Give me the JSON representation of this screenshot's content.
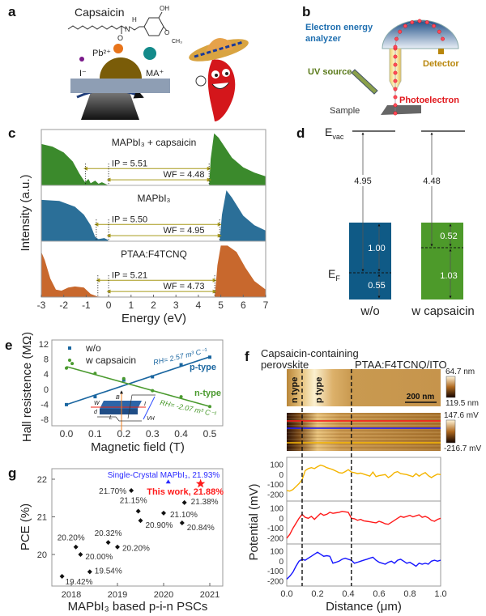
{
  "panel_labels": {
    "a": "a",
    "b": "b",
    "c": "c",
    "d": "d",
    "e": "e",
    "f": "f",
    "g": "g"
  },
  "panel_a": {
    "title": "Capsaicin",
    "molecule_labels": {
      "oh": "OH",
      "h": "H",
      "n": "N",
      "o": "O",
      "o2": "O",
      "ch3": "CH₃"
    },
    "pb": "Pb²⁺",
    "iodide": "I⁻",
    "ma": "MA⁺",
    "colors": {
      "pb": "#e8741a",
      "ma": "#138a8a",
      "iodide": "#7a1a8a",
      "dome": "#7a5c08",
      "substrate": "#8e9eb4"
    }
  },
  "panel_b": {
    "analyzer_line1": "Electron energy",
    "analyzer_line2": "analyzer",
    "detector": "Detector",
    "uv_source": "UV source",
    "photoelectron": "Photoelectron",
    "sample": "Sample",
    "colors": {
      "analyzer": "#1f6fb0",
      "detector": "#b8860b",
      "uv": "#5a7a1a",
      "photoelectron": "#e0161b",
      "sample": "#333333"
    }
  },
  "panel_d": {
    "evac": "E",
    "evac_sub": "vac",
    "ef": "E",
    "ef_sub": "F",
    "columns": [
      {
        "label": "w/o",
        "wf": "4.95",
        "upper": "1.00",
        "lower": "0.55",
        "color": "#0f5a86"
      },
      {
        "label": "w capsaicin",
        "wf": "4.48",
        "upper": "0.52",
        "lower": "1.03",
        "color": "#4d9a2a"
      }
    ]
  },
  "chart_data": [
    {
      "id": "c",
      "type": "area",
      "xlabel": "Energy (eV)",
      "ylabel": "Intensity (a.u.)",
      "xlim": [
        -3,
        7
      ],
      "xticks": [
        "-3",
        "-2",
        "-1",
        "0",
        "1",
        "2",
        "3",
        "4",
        "5",
        "6",
        "7"
      ],
      "series": [
        {
          "name": "MAPbI₃ + capsaicin",
          "color": "#3b8a2c",
          "ip": "IP = 5.51",
          "wf": "WF = 4.48",
          "vbm": -1.03,
          "cutoff": 4.48,
          "points": [
            [
              -3,
              0.78
            ],
            [
              -2.5,
              0.73
            ],
            [
              -2,
              0.62
            ],
            [
              -1.6,
              0.45
            ],
            [
              -1.3,
              0.22
            ],
            [
              -1.05,
              0.06
            ],
            [
              -0.9,
              0.12
            ],
            [
              -0.8,
              0.04
            ],
            [
              -0.6,
              0.09
            ],
            [
              -0.45,
              0.03
            ],
            [
              -0.3,
              0.06
            ],
            [
              -0.1,
              0.02
            ],
            [
              0,
              0
            ],
            [
              4.48,
              0
            ],
            [
              4.55,
              0.5
            ],
            [
              4.7,
              0.98
            ],
            [
              4.9,
              0.9
            ],
            [
              5.5,
              0.52
            ],
            [
              6,
              0.34
            ],
            [
              6.5,
              0.24
            ],
            [
              7,
              0.17
            ]
          ]
        },
        {
          "name": "MAPbI₃",
          "color": "#2b6f98",
          "ip": "IP = 5.50",
          "wf": "WF = 4.95",
          "vbm": -0.55,
          "cutoff": 4.95,
          "points": [
            [
              -3,
              0.78
            ],
            [
              -2.2,
              0.76
            ],
            [
              -1.5,
              0.65
            ],
            [
              -1.1,
              0.5
            ],
            [
              -0.8,
              0.3
            ],
            [
              -0.6,
              0.08
            ],
            [
              -0.45,
              0.04
            ],
            [
              -0.2,
              0.06
            ],
            [
              -0.05,
              0.03
            ],
            [
              0,
              0
            ],
            [
              4.95,
              0
            ],
            [
              5.05,
              0.5
            ],
            [
              5.25,
              0.96
            ],
            [
              5.5,
              0.82
            ],
            [
              6,
              0.48
            ],
            [
              6.5,
              0.3
            ],
            [
              7,
              0.2
            ]
          ]
        },
        {
          "name": "PTAA:F4TCNQ",
          "color": "#c8682d",
          "ip": "IP = 5.21",
          "wf": "WF = 4.73",
          "vbm": -0.48,
          "cutoff": 4.73,
          "points": [
            [
              -3,
              0.85
            ],
            [
              -2.85,
              0.7
            ],
            [
              -2.6,
              0.35
            ],
            [
              -2.35,
              0.14
            ],
            [
              -2.1,
              0.12
            ],
            [
              -1.8,
              0.18
            ],
            [
              -1.5,
              0.2
            ],
            [
              -1.1,
              0.18
            ],
            [
              -0.8,
              0.06
            ],
            [
              -0.5,
              0.01
            ],
            [
              0,
              0
            ],
            [
              4.73,
              0
            ],
            [
              4.85,
              0.6
            ],
            [
              5,
              0.97
            ],
            [
              5.3,
              0.97
            ],
            [
              5.7,
              0.85
            ],
            [
              6.1,
              0.55
            ],
            [
              6.5,
              0.3
            ],
            [
              7,
              0.14
            ]
          ]
        }
      ]
    },
    {
      "id": "e",
      "type": "scatter",
      "xlabel": "Magnetic field (T)",
      "ylabel": "Hall resistence (MΩ)",
      "xlim": [
        0,
        0.5
      ],
      "ylim": [
        -8,
        12
      ],
      "xticks": [
        "0.0",
        "0.1",
        "0.2",
        "0.3",
        "0.4",
        "0.5"
      ],
      "yticks": [
        "-8",
        "-4",
        "0",
        "4",
        "8",
        "12"
      ],
      "series": [
        {
          "name": "w/o",
          "color": "#1a66a0",
          "marker": "square",
          "fit": [
            -4.1,
            8.6
          ],
          "annotation": "RH= 2.57 m³ C⁻¹",
          "type_label": "p-type",
          "x": [
            0,
            0.1,
            0.2,
            0.3,
            0.4,
            0.5
          ],
          "y": [
            -4.1,
            -2.0,
            2.4,
            3.3,
            6.5,
            8.5
          ]
        },
        {
          "name": "w capsaicin",
          "color": "#4a9a2e",
          "marker": "circle",
          "fit": [
            6.0,
            -4.6
          ],
          "annotation": "RH= -2.07 m³ C⁻¹",
          "type_label": "n-type",
          "x": [
            0,
            0.02,
            0.1,
            0.2,
            0.3,
            0.4,
            0.5
          ],
          "y": [
            5.6,
            6.8,
            4.2,
            2.8,
            -0.4,
            -2.0,
            -4.6
          ]
        }
      ],
      "inset_labels": {
        "b": "B",
        "w": "W",
        "d": "d",
        "l": "L",
        "i": "I",
        "vh": "VH"
      }
    },
    {
      "id": "g",
      "type": "scatter",
      "xlabel": "MAPbI₃ based p-i-n PSCs",
      "ylabel": "PCE (%)",
      "xlim": [
        2017.7,
        2021.3
      ],
      "ylim": [
        19.1,
        22.3
      ],
      "xticks": [
        "2018",
        "2019",
        "2020",
        "2021"
      ],
      "yticks": [
        "20",
        "21",
        "22"
      ],
      "points": [
        {
          "x": 2017.8,
          "y": 19.42,
          "label": "19.42%"
        },
        {
          "x": 2018.1,
          "y": 20.2,
          "label": "20.20%"
        },
        {
          "x": 2018.2,
          "y": 20.0,
          "label": "20.00%"
        },
        {
          "x": 2018.4,
          "y": 19.54,
          "label": "19.54%"
        },
        {
          "x": 2018.8,
          "y": 20.32,
          "label": "20.32%"
        },
        {
          "x": 2019.0,
          "y": 20.2,
          "label": "20.20%"
        },
        {
          "x": 2019.3,
          "y": 21.7,
          "label": "21.70%"
        },
        {
          "x": 2019.45,
          "y": 21.15,
          "label": "21.15%"
        },
        {
          "x": 2019.5,
          "y": 20.9,
          "label": "20.90%"
        },
        {
          "x": 2020.0,
          "y": 21.1,
          "label": "21.10%"
        },
        {
          "x": 2020.4,
          "y": 20.84,
          "label": "20.84%"
        },
        {
          "x": 2020.45,
          "y": 21.38,
          "label": "21.38%"
        }
      ],
      "highlights": [
        {
          "x": 2020.1,
          "y": 21.93,
          "label": "Single-Crystal MAPbI₃, 21.93%",
          "marker": "triangle",
          "color": "#2a2aff"
        },
        {
          "x": 2020.8,
          "y": 21.88,
          "label": "This work, 21.88%",
          "marker": "star",
          "color": "#ff1a1a"
        }
      ]
    },
    {
      "id": "f",
      "type": "line",
      "title_line1": "Capsaicin-containing",
      "title_line2": "perovskite",
      "title_right": "PTAA:F4TCNQ/ITO",
      "region_labels": [
        "n type",
        "p type"
      ],
      "scale_bar": "200 nm",
      "height_colorbar": [
        "64.7 nm",
        "119.5 nm"
      ],
      "potential_colorbar": [
        "147.6 mV",
        "-216.7 mV"
      ],
      "xlabel": "Distance (μm)",
      "ylabel": "Potential (mV)",
      "xlim": [
        0,
        1
      ],
      "ylim": [
        -230,
        130
      ],
      "xticks": [
        "0.0",
        "0.2",
        "0.4",
        "0.6",
        "0.8",
        "1.0"
      ],
      "yticks": [
        "100",
        "0",
        "-100",
        "-200"
      ],
      "boundaries": [
        0.1,
        0.42
      ],
      "x": [
        0,
        0.02,
        0.04,
        0.06,
        0.08,
        0.1,
        0.12,
        0.14,
        0.16,
        0.18,
        0.2,
        0.22,
        0.24,
        0.26,
        0.28,
        0.3,
        0.32,
        0.34,
        0.36,
        0.38,
        0.4,
        0.42,
        0.44,
        0.46,
        0.48,
        0.5,
        0.52,
        0.54,
        0.56,
        0.58,
        0.6,
        0.62,
        0.64,
        0.66,
        0.68,
        0.7,
        0.72,
        0.74,
        0.76,
        0.78,
        0.8,
        0.82,
        0.84,
        0.86,
        0.88,
        0.9,
        0.92,
        0.94,
        0.96,
        0.98,
        1.0
      ],
      "series": [
        {
          "color": "#f4b400",
          "y": [
            -160,
            -165,
            -150,
            -120,
            -90,
            -50,
            40,
            60,
            70,
            60,
            80,
            95,
            85,
            70,
            60,
            50,
            35,
            20,
            15,
            30,
            50,
            25,
            20,
            10,
            15,
            5,
            -5,
            -15,
            25,
            -20,
            -10,
            -5,
            0,
            -30,
            -10,
            20,
            30,
            10,
            5,
            0,
            -10,
            -20,
            10,
            -15,
            5,
            20,
            -10,
            -30,
            -10,
            5,
            0
          ]
        },
        {
          "color": "#ff1a1a",
          "y": [
            -200,
            -160,
            -100,
            -50,
            0,
            40,
            10,
            0,
            20,
            -10,
            20,
            50,
            30,
            40,
            60,
            50,
            55,
            60,
            70,
            65,
            60,
            0,
            -5,
            -20,
            -10,
            -25,
            -30,
            -35,
            -40,
            -45,
            -30,
            -40,
            -55,
            -60,
            -40,
            -20,
            0,
            20,
            10,
            20,
            30,
            15,
            25,
            35,
            10,
            20,
            5,
            -20,
            -30,
            -10,
            0
          ]
        },
        {
          "color": "#1414ff",
          "y": [
            -180,
            -150,
            -110,
            -50,
            0,
            20,
            10,
            30,
            50,
            70,
            90,
            70,
            50,
            55,
            50,
            -20,
            -10,
            0,
            20,
            30,
            20,
            10,
            -20,
            -10,
            0,
            10,
            20,
            30,
            40,
            10,
            -10,
            -20,
            -30,
            -10,
            0,
            -20,
            10,
            20,
            0,
            -20,
            -10,
            -30,
            -50,
            -20,
            -30,
            -20,
            -30,
            0,
            10,
            0,
            10
          ]
        }
      ]
    }
  ]
}
